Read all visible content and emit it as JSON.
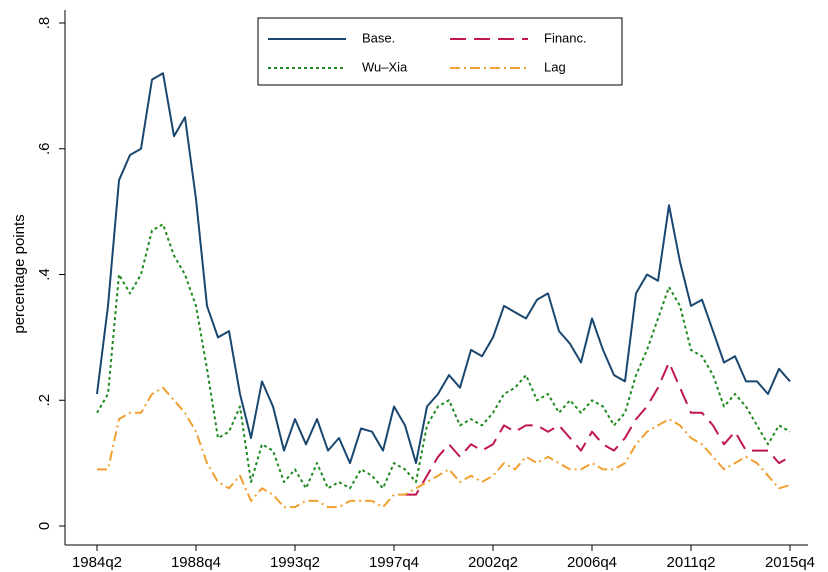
{
  "chart_data": {
    "type": "line",
    "y_label": "percentage points",
    "x": [
      "1984q2",
      "1984q4",
      "1985q2",
      "1985q4",
      "1986q2",
      "1986q4",
      "1987q2",
      "1987q4",
      "1988q2",
      "1988q4",
      "1989q2",
      "1989q4",
      "1990q2",
      "1990q4",
      "1991q2",
      "1991q4",
      "1992q2",
      "1992q4",
      "1993q2",
      "1993q4",
      "1994q2",
      "1994q4",
      "1995q2",
      "1995q4",
      "1996q2",
      "1996q4",
      "1997q2",
      "1997q4",
      "1998q2",
      "1998q4",
      "1999q2",
      "1999q4",
      "2000q2",
      "2000q4",
      "2001q2",
      "2001q4",
      "2002q2",
      "2002q4",
      "2003q2",
      "2003q4",
      "2004q2",
      "2004q4",
      "2005q2",
      "2005q4",
      "2006q2",
      "2006q4",
      "2007q2",
      "2007q4",
      "2008q2",
      "2008q4",
      "2009q2",
      "2009q4",
      "2010q2",
      "2010q4",
      "2011q2",
      "2011q4",
      "2012q2",
      "2012q4",
      "2013q2",
      "2013q4",
      "2014q2",
      "2014q4",
      "2015q2",
      "2015q4"
    ],
    "xticks": [
      "1984q2",
      "1988q4",
      "1993q2",
      "1997q4",
      "2002q2",
      "2006q4",
      "2011q2",
      "2015q4"
    ],
    "ylim": [
      0,
      0.8
    ],
    "yticks": [
      0,
      {
        "value": 0.2,
        "label": ".2"
      },
      {
        "value": 0.4,
        "label": ".4"
      },
      {
        "value": 0.6,
        "label": ".6"
      },
      {
        "value": 0.8,
        "label": ".8"
      }
    ],
    "legend": "top",
    "series": [
      {
        "name": "Base.",
        "color": "#1a476f",
        "dash": "solid",
        "values": [
          0.21,
          0.35,
          0.55,
          0.59,
          0.6,
          0.71,
          0.72,
          0.62,
          0.65,
          0.52,
          0.35,
          0.3,
          0.31,
          0.21,
          0.14,
          0.23,
          0.19,
          0.12,
          0.17,
          0.13,
          0.17,
          0.12,
          0.14,
          0.1,
          0.155,
          0.15,
          0.12,
          0.19,
          0.16,
          0.1,
          0.19,
          0.21,
          0.24,
          0.22,
          0.28,
          0.27,
          0.3,
          0.35,
          0.34,
          0.33,
          0.36,
          0.37,
          0.31,
          0.29,
          0.26,
          0.33,
          0.28,
          0.24,
          0.23,
          0.37,
          0.4,
          0.39,
          0.51,
          0.42,
          0.35,
          0.36,
          0.31,
          0.26,
          0.27,
          0.23,
          0.23,
          0.21,
          0.25,
          0.23
        ]
      },
      {
        "name": "Financ.",
        "color": "#c0174c",
        "dash": "long",
        "values": [
          null,
          null,
          null,
          null,
          null,
          null,
          null,
          null,
          null,
          null,
          null,
          null,
          null,
          null,
          null,
          null,
          null,
          null,
          null,
          null,
          null,
          null,
          null,
          null,
          null,
          null,
          null,
          null,
          0.05,
          0.05,
          0.08,
          0.11,
          0.13,
          0.11,
          0.13,
          0.12,
          0.13,
          0.16,
          0.15,
          0.16,
          0.16,
          0.15,
          0.16,
          0.14,
          0.12,
          0.15,
          0.13,
          0.12,
          0.14,
          0.17,
          0.19,
          0.22,
          0.26,
          0.22,
          0.18,
          0.18,
          0.16,
          0.13,
          0.15,
          0.12,
          0.12,
          0.12,
          0.1,
          0.11
        ]
      },
      {
        "name": "Wu–Xia",
        "color": "#1f8a1f",
        "dash": "dot",
        "values": [
          0.18,
          0.21,
          0.4,
          0.37,
          0.4,
          0.47,
          0.48,
          0.43,
          0.4,
          0.35,
          0.25,
          0.14,
          0.15,
          0.19,
          0.07,
          0.13,
          0.12,
          0.07,
          0.09,
          0.06,
          0.1,
          0.06,
          0.07,
          0.06,
          0.09,
          0.08,
          0.06,
          0.1,
          0.09,
          0.07,
          0.16,
          0.19,
          0.2,
          0.16,
          0.17,
          0.16,
          0.18,
          0.21,
          0.22,
          0.24,
          0.2,
          0.21,
          0.18,
          0.2,
          0.18,
          0.2,
          0.19,
          0.16,
          0.18,
          0.24,
          0.28,
          0.33,
          0.38,
          0.35,
          0.28,
          0.27,
          0.24,
          0.19,
          0.21,
          0.19,
          0.16,
          0.13,
          0.16,
          0.15
        ]
      },
      {
        "name": "Lag",
        "color": "#f0a030",
        "dash": "dashdot",
        "values": [
          0.09,
          0.09,
          0.17,
          0.18,
          0.18,
          0.21,
          0.22,
          0.2,
          0.18,
          0.15,
          0.1,
          0.07,
          0.06,
          0.08,
          0.04,
          0.06,
          0.05,
          0.03,
          0.03,
          0.04,
          0.04,
          0.03,
          0.03,
          0.04,
          0.04,
          0.04,
          0.03,
          0.05,
          0.05,
          0.06,
          0.07,
          0.08,
          0.09,
          0.07,
          0.08,
          0.07,
          0.08,
          0.1,
          0.09,
          0.11,
          0.1,
          0.11,
          0.1,
          0.09,
          0.09,
          0.1,
          0.09,
          0.09,
          0.1,
          0.13,
          0.15,
          0.16,
          0.17,
          0.16,
          0.14,
          0.13,
          0.11,
          0.09,
          0.1,
          0.11,
          0.1,
          0.08,
          0.06,
          0.065
        ]
      }
    ]
  }
}
